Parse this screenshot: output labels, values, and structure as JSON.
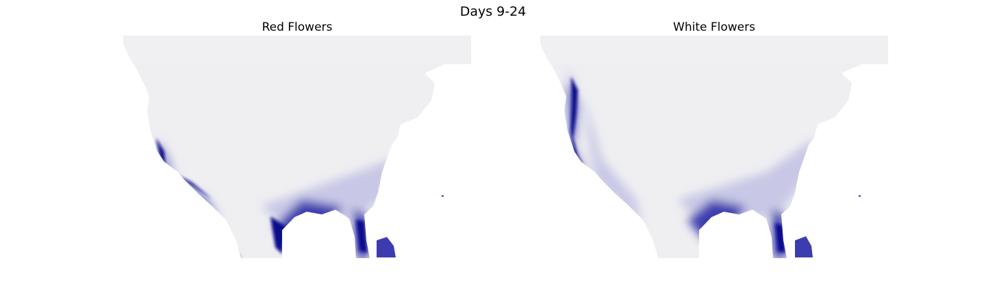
{
  "title": "Days 9-24",
  "panels": [
    {
      "title": "Red Flowers"
    },
    {
      "title": "White Flowers"
    }
  ],
  "colors": {
    "land_base": "#efeff2",
    "density_high": "#0a0a8c",
    "density_mid": "#3c3cb0",
    "density_low": "#c8c8e6"
  }
}
